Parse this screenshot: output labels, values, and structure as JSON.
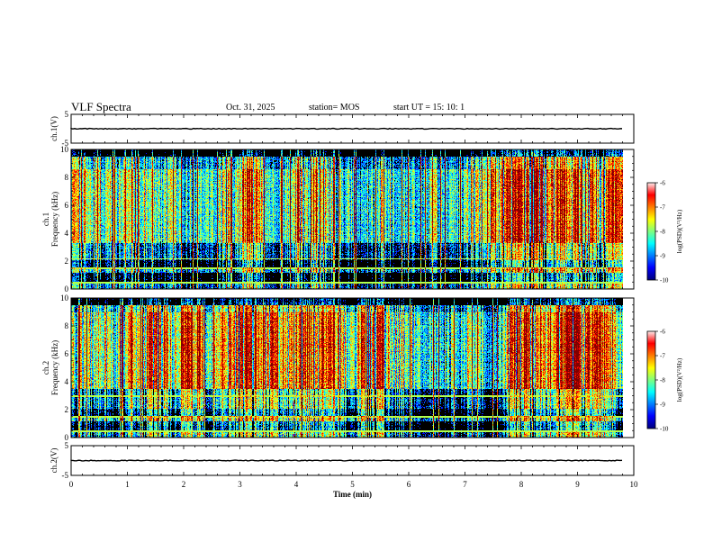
{
  "header": {
    "title": "VLF Spectra",
    "date": "Oct. 31, 2025",
    "station": "station= MOS",
    "start": "start  UT =   15: 10: 1"
  },
  "chart_data": [
    {
      "type": "line",
      "name": "ch1-voltage",
      "ylabel": "ch.1(V)",
      "ylim": [
        -5,
        5
      ],
      "yticks": [
        "5",
        "-5"
      ],
      "level": 0,
      "xlim": [
        0,
        10
      ],
      "data_xmax": 9.8
    },
    {
      "type": "heatmap",
      "name": "ch1-spectrogram",
      "ylabel": "ch.1\nFrequency (kHz)",
      "ylabel_lines": [
        "ch.1",
        "Frequency (kHz)"
      ],
      "ylim": [
        0,
        10
      ],
      "yticks": [
        "0",
        "2",
        "4",
        "6",
        "8",
        "10"
      ],
      "xlim": [
        0,
        10
      ],
      "data_xmax": 9.8,
      "colorbar": {
        "label": "log(PSD)(V²/Hz)",
        "range": [
          -10,
          -6
        ],
        "ticks": [
          "-6",
          "-7",
          "-8",
          "-9",
          "-10"
        ]
      }
    },
    {
      "type": "heatmap",
      "name": "ch2-spectrogram",
      "ylabel": "ch.2\nFrequency (kHz)",
      "ylabel_lines": [
        "ch.2",
        "Frequency (kHz)"
      ],
      "ylim": [
        0,
        10
      ],
      "yticks": [
        "0",
        "2",
        "4",
        "6",
        "8",
        "10"
      ],
      "xlim": [
        0,
        10
      ],
      "data_xmax": 9.8,
      "colorbar": {
        "label": "log(PSD)(V²/Hz)",
        "range": [
          -10,
          -6
        ],
        "ticks": [
          "-6",
          "-7",
          "-8",
          "-9",
          "-10"
        ]
      }
    },
    {
      "type": "line",
      "name": "ch2-voltage",
      "ylabel": "ch.2(V)",
      "ylim": [
        -5,
        5
      ],
      "yticks": [
        "5",
        "-5"
      ],
      "level": 0,
      "xlim": [
        0,
        10
      ],
      "data_xmax": 9.8
    }
  ],
  "xaxis": {
    "label": "Time (min)",
    "ticks": [
      "0",
      "1",
      "2",
      "3",
      "4",
      "5",
      "6",
      "7",
      "8",
      "9",
      "10"
    ]
  }
}
